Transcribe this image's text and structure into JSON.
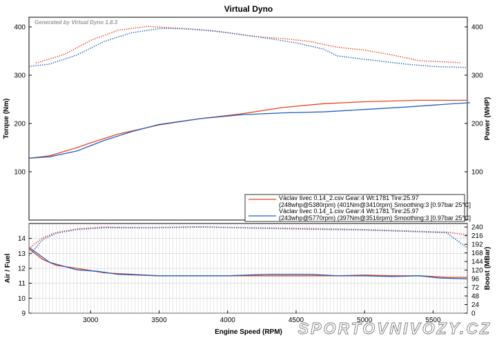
{
  "chart_data": [
    {
      "type": "line",
      "title": "Virtual Dyno",
      "generated_by": "Generated by Virtual Dyno 1.8.3",
      "ylabel_left": "Torque (Nm)",
      "ylabel_right": "Power (WHP)",
      "xlim": [
        2550,
        5750
      ],
      "ylim": [
        0,
        420
      ],
      "yticks_left": [
        100,
        200,
        300,
        400
      ],
      "yticks_right": [
        100,
        200,
        300,
        400
      ],
      "legend_position": "bottom-right",
      "legend": [
        {
          "line1": "Václav švec 0.14_2.csv Gear:4 Wt:1781 Tire:25.97",
          "line2": "(248whp@5380rpm) (401Nm@3410rpm) Smoothing:3 [0.97bar 25°C]",
          "color": "#e8411e"
        },
        {
          "line1": "Václav švec 0.14_1.csv Gear:4 Wt:1781 Tire:25.97",
          "line2": "(243whp@5770rpm) (397Nm@3516rpm) Smoothing:3 [0.97bar 25°C]",
          "color": "#1f5fbf"
        }
      ],
      "series": [
        {
          "name": "Václav švec 0.14_2.csv",
          "measure": "Power (WHP)",
          "color": "#e8411e",
          "style": "solid",
          "x": [
            2550,
            2700,
            2900,
            3000,
            3200,
            3500,
            3800,
            4100,
            4400,
            4700,
            5000,
            5380,
            5750
          ],
          "y": [
            128,
            133,
            150,
            160,
            178,
            197,
            210,
            220,
            233,
            241,
            245,
            248,
            248
          ]
        },
        {
          "name": "Václav švec 0.14_2.csv",
          "measure": "Torque (Nm)",
          "color": "#e8411e",
          "style": "dotted",
          "x": [
            2600,
            2800,
            3000,
            3200,
            3410,
            3600,
            3800,
            4000,
            4200,
            4400,
            4600,
            4800,
            5000,
            5200,
            5400,
            5700
          ],
          "y": [
            325,
            342,
            372,
            393,
            401,
            398,
            394,
            388,
            380,
            376,
            370,
            358,
            352,
            342,
            330,
            326
          ]
        },
        {
          "name": "Václav švec 0.14_1.csv",
          "measure": "Power (WHP)",
          "color": "#1f5fbf",
          "style": "solid",
          "x": [
            2550,
            2700,
            2900,
            3100,
            3300,
            3500,
            3800,
            4100,
            4400,
            4700,
            5000,
            5300,
            5600,
            5770
          ],
          "y": [
            128,
            131,
            143,
            165,
            183,
            198,
            210,
            218,
            222,
            224,
            229,
            234,
            240,
            243
          ]
        },
        {
          "name": "Václav švec 0.14_1.csv",
          "measure": "Torque (Nm)",
          "color": "#1f5fbf",
          "style": "dotted",
          "x": [
            2550,
            2700,
            2900,
            3100,
            3300,
            3516,
            3700,
            3900,
            4100,
            4300,
            4500,
            4700,
            4800,
            5000,
            5300,
            5500,
            5750
          ],
          "y": [
            318,
            323,
            342,
            370,
            388,
            397,
            396,
            392,
            384,
            376,
            367,
            354,
            340,
            333,
            323,
            318,
            316
          ]
        }
      ]
    },
    {
      "type": "line",
      "xlabel": "Engine Speed (RPM)",
      "ylabel_left": "Air / Fuel",
      "ylabel_right": "Boost (MBar)",
      "xlim": [
        2550,
        5750
      ],
      "ylim_left": [
        9,
        15
      ],
      "ylim_right": [
        0,
        250
      ],
      "xticks": [
        3000,
        3500,
        4000,
        4500,
        5000,
        5500
      ],
      "yticks_left": [
        9,
        10,
        11,
        12,
        13,
        14
      ],
      "yticks_right": [
        0,
        24,
        48,
        72,
        96,
        120,
        144,
        168,
        192,
        216,
        240
      ],
      "series": [
        {
          "name": "Václav švec 0.14_2.csv",
          "measure": "Air / Fuel",
          "color": "#e8411e",
          "style": "solid",
          "x": [
            2550,
            2650,
            2750,
            2900,
            3100,
            3300,
            3500,
            3800,
            4000,
            4300,
            4600,
            4800,
            5000,
            5200,
            5400,
            5600,
            5750
          ],
          "y": [
            13.3,
            12.6,
            12.2,
            12.0,
            11.7,
            11.6,
            11.5,
            11.5,
            11.5,
            11.5,
            11.5,
            11.5,
            11.55,
            11.5,
            11.5,
            11.4,
            11.4
          ]
        },
        {
          "name": "Václav švec 0.14_1.csv",
          "measure": "Air / Fuel",
          "color": "#1f5fbf",
          "style": "solid",
          "x": [
            2550,
            2700,
            2900,
            3050,
            3200,
            3500,
            3800,
            4000,
            4300,
            4600,
            4800,
            5000,
            5200,
            5400,
            5550,
            5750
          ],
          "y": [
            13.4,
            12.4,
            11.9,
            11.8,
            11.6,
            11.5,
            11.5,
            11.5,
            11.6,
            11.6,
            11.5,
            11.5,
            11.45,
            11.5,
            11.35,
            11.3
          ]
        },
        {
          "name": "Václav švec 0.14_2.csv",
          "measure": "Boost (MBar)",
          "color": "#e8411e",
          "style": "dotted",
          "x": [
            2550,
            2650,
            2750,
            2900,
            3100,
            3400,
            3800,
            4200,
            4600,
            5000,
            5400,
            5600,
            5750
          ],
          "y": [
            180,
            210,
            225,
            235,
            240,
            238,
            240,
            238,
            236,
            233,
            228,
            226,
            218
          ]
        },
        {
          "name": "Václav švec 0.14_1.csv",
          "measure": "Boost (MBar)",
          "color": "#1f5fbf",
          "style": "dotted",
          "x": [
            2550,
            2650,
            2750,
            2900,
            3100,
            3400,
            3800,
            4200,
            4600,
            5000,
            5400,
            5600,
            5750
          ],
          "y": [
            160,
            205,
            223,
            233,
            238,
            238,
            241,
            237,
            234,
            232,
            227,
            224,
            182
          ]
        }
      ]
    }
  ],
  "watermark": "SPORTOVNIVOZY.CZ"
}
